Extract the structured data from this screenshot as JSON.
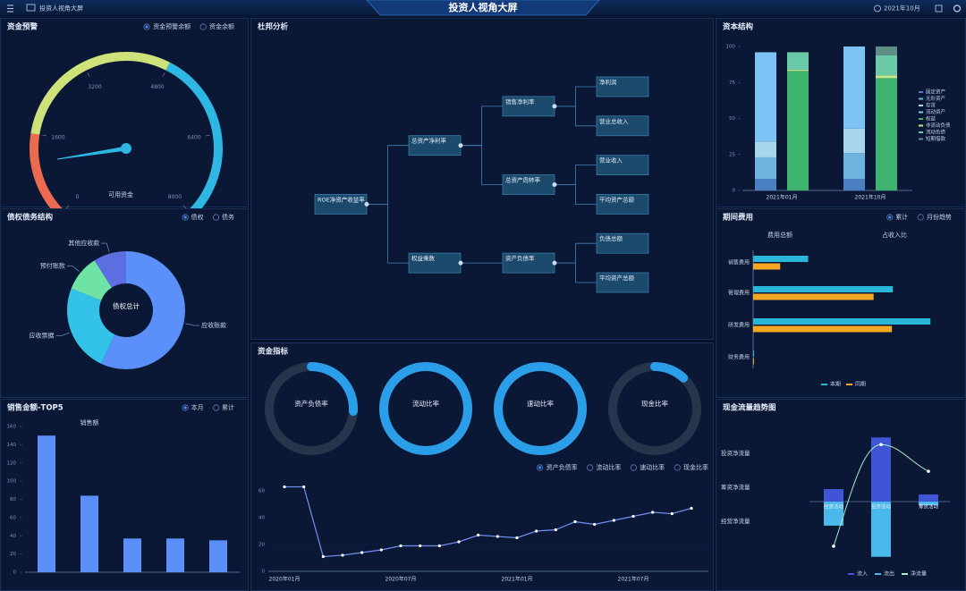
{
  "header": {
    "app_name": "投资人视角大屏",
    "title": "投资人视角大屏",
    "date": "2021年10月"
  },
  "chart_data": [
    {
      "type": "gauge",
      "title": "资金预警",
      "options": [
        "资金预警余额",
        "资金余额"
      ],
      "selected": 0,
      "label": "可用资金",
      "value": 1070,
      "ylim": [
        0,
        8000
      ],
      "yticks": [
        0,
        1600,
        3200,
        4800,
        6400,
        8000
      ],
      "bands": [
        {
          "to": 1600,
          "color": "#ec6a4f"
        },
        {
          "to": 4800,
          "color": "#cfe27a"
        },
        {
          "to": 8000,
          "color": "#2eb7e3"
        }
      ]
    },
    {
      "type": "donut",
      "title": "债权债务结构",
      "options": [
        "债权",
        "债务"
      ],
      "selected": 0,
      "center_label": "债权总计",
      "categories": [
        "应收账款",
        "应收票据",
        "预付账款",
        "其他应收款"
      ],
      "values": [
        57,
        24,
        10,
        9
      ],
      "colors": [
        "#5b8ff9",
        "#33c2e8",
        "#6fe3a6",
        "#5d6fe0"
      ]
    },
    {
      "type": "bar",
      "title": "销售金额-TOP5",
      "options": [
        "本月",
        "累计"
      ],
      "selected": 0,
      "series_label": "销售额",
      "categories": [
        null,
        null,
        null,
        null,
        null
      ],
      "values": [
        150,
        84,
        37,
        37,
        35
      ],
      "color": "#5b8ff9",
      "ylim": [
        0,
        160
      ],
      "yticks": [
        0,
        20,
        40,
        60,
        80,
        100,
        120,
        140,
        160
      ]
    },
    {
      "type": "tree",
      "title": "杜邦分析",
      "nodes": [
        {
          "label": "ROE净资产收益率",
          "parent": null
        },
        {
          "label": "总资产净利率",
          "parent": 0
        },
        {
          "label": "权益乘数",
          "parent": 0
        },
        {
          "label": "销售净利率",
          "parent": 1
        },
        {
          "label": "总资产周转率",
          "parent": 1
        },
        {
          "label": "资产负债率",
          "parent": 2
        },
        {
          "label": "净利润",
          "parent": 3
        },
        {
          "label": "营业总收入",
          "parent": 3
        },
        {
          "label": "营业收入",
          "parent": 4
        },
        {
          "label": "平均资产总额",
          "parent": 4
        },
        {
          "label": "负债总额",
          "parent": 5
        },
        {
          "label": "平均资产总额",
          "parent": 5
        }
      ]
    },
    {
      "type": "rings",
      "title": "资金指标",
      "categories": [
        "资产负债率",
        "流动比率",
        "速动比率",
        "现金比率"
      ],
      "values": [
        26,
        100,
        100,
        12
      ],
      "ylim": [
        0,
        100
      ],
      "color": "#2a9ee9",
      "track_color": "#26344c"
    },
    {
      "type": "line",
      "options": [
        "资产负债率",
        "流动比率",
        "速动比率",
        "现金比率"
      ],
      "selected": 0,
      "x": [
        "2020年01月",
        null,
        null,
        null,
        null,
        null,
        "2020年07月",
        null,
        null,
        null,
        null,
        null,
        "2021年01月",
        null,
        null,
        null,
        null,
        null,
        "2021年07月",
        null,
        null,
        null
      ],
      "values": [
        63,
        63,
        11,
        12,
        14,
        16,
        19,
        19,
        19,
        22,
        27,
        26,
        25,
        30,
        31,
        37,
        35,
        38,
        41,
        44,
        43,
        47
      ],
      "color": "#6f8ff2",
      "ylim": [
        0,
        70
      ],
      "yticks": [
        0,
        20,
        40,
        60
      ]
    },
    {
      "type": "stacked_bar",
      "title": "资本结构",
      "categories": [
        "2021年01月",
        "2021年10月"
      ],
      "series": [
        {
          "name": "固定资产",
          "color": "#4a7fc1",
          "stack": 0,
          "values": [
            8,
            8
          ]
        },
        {
          "name": "无形资产",
          "color": "#6fb3e0",
          "stack": 0,
          "values": [
            15,
            18
          ]
        },
        {
          "name": "存货",
          "color": "#a7d6ec",
          "stack": 0,
          "values": [
            11,
            17
          ]
        },
        {
          "name": "流动资产",
          "color": "#7cc3f5",
          "stack": 0,
          "values": [
            62,
            57
          ]
        },
        {
          "name": "权益",
          "color": "#3db36e",
          "stack": 1,
          "values": [
            83,
            78
          ]
        },
        {
          "name": "非流动负债",
          "color": "#c4e88e",
          "stack": 1,
          "values": [
            1,
            2
          ]
        },
        {
          "name": "流动负债",
          "color": "#6ac9a7",
          "stack": 1,
          "values": [
            12,
            14
          ]
        },
        {
          "name": "短期借款",
          "color": "#5e8f86",
          "stack": 1,
          "values": [
            0,
            6
          ]
        }
      ],
      "ylim": [
        0,
        100
      ],
      "yticks": [
        0,
        25,
        50,
        75,
        100
      ]
    },
    {
      "type": "hbar",
      "title": "期间费用",
      "options": [
        "累计",
        "月份趋势"
      ],
      "selected": 0,
      "summary": [
        "费用总额",
        "占收入比"
      ],
      "categories": [
        "销售费用",
        "管理费用",
        "研发费用",
        "财务费用"
      ],
      "series": [
        {
          "name": "本期",
          "color": "#29b6d8",
          "values": [
            63,
            160,
            203,
            1
          ]
        },
        {
          "name": "同期",
          "color": "#f5a623",
          "values": [
            31,
            138,
            159,
            1
          ]
        }
      ],
      "xlim": [
        0,
        210
      ]
    },
    {
      "type": "cashflow",
      "title": "现金流量趋势图",
      "row_labels": [
        "投资净流量",
        "筹资净流量",
        "经营净流量"
      ],
      "categories": [
        "经营活动",
        "投资活动",
        "筹资活动"
      ],
      "series": [
        {
          "name": "流入",
          "color": "#3f55d6",
          "kind": "bar",
          "values": [
            14,
            72,
            8
          ]
        },
        {
          "name": "流出",
          "color": "#4ab8ea",
          "kind": "bar",
          "values": [
            -27,
            -62,
            -4
          ]
        },
        {
          "name": "净流量",
          "color": "#a6ecc6",
          "kind": "line",
          "values": [
            -50,
            64,
            34
          ]
        }
      ],
      "ylim": [
        -70,
        80
      ]
    }
  ]
}
